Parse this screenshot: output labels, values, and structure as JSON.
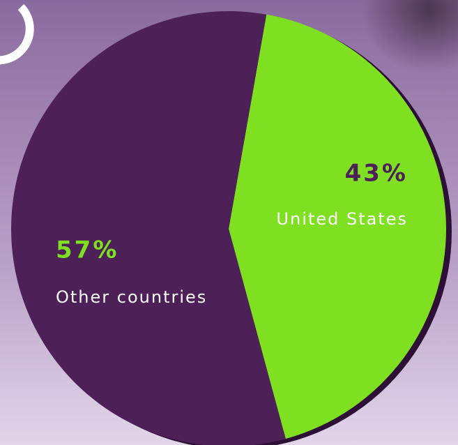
{
  "chart_data": {
    "type": "pie",
    "categories": [
      "United States",
      "Other countries"
    ],
    "values": [
      43,
      57
    ],
    "value_labels": [
      "43%",
      "57%"
    ],
    "colors": [
      "#7ee021",
      "#4e2058"
    ]
  }
}
